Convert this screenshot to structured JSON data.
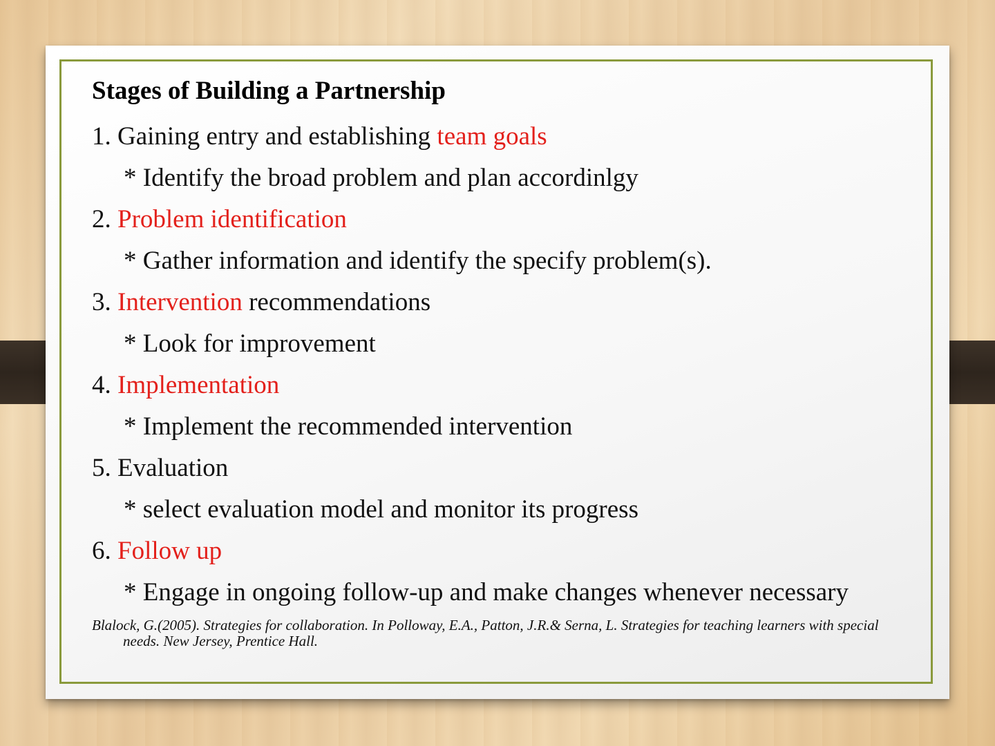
{
  "slide": {
    "title": "Stages of Building a Partnership",
    "stages": [
      {
        "prefix": "1. Gaining entry and establishing ",
        "highlight": "team goals",
        "suffix": "",
        "detail": "* Identify the broad problem and plan accordinlgy"
      },
      {
        "prefix": "2. ",
        "highlight": "Problem identification",
        "suffix": "",
        "detail": "* Gather information and identify the specify problem(s)."
      },
      {
        "prefix": "3. ",
        "highlight": "Intervention",
        "suffix": " recommendations",
        "detail": "* Look for improvement"
      },
      {
        "prefix": "4. ",
        "highlight": "Implementation",
        "suffix": "",
        "detail": "* Implement the recommended intervention"
      },
      {
        "prefix": "5. Evaluation",
        "highlight": "",
        "suffix": "",
        "detail": "* select evaluation model and monitor its progress"
      },
      {
        "prefix": "6. ",
        "highlight": "Follow up",
        "suffix": "",
        "detail": "* Engage in ongoing follow-up and make changes whenever necessary"
      }
    ],
    "citation": {
      "line1": "Blalock, G.(2005). Strategies for collaboration. In Polloway, E.A., Patton, J.R.& Serna, L. Strategies for teaching learners with special",
      "line2": "needs. New Jersey, Prentice Hall."
    }
  },
  "colors": {
    "highlight": "#e3201b",
    "frame": "#8a9a3c",
    "strap": "#2e251d"
  }
}
